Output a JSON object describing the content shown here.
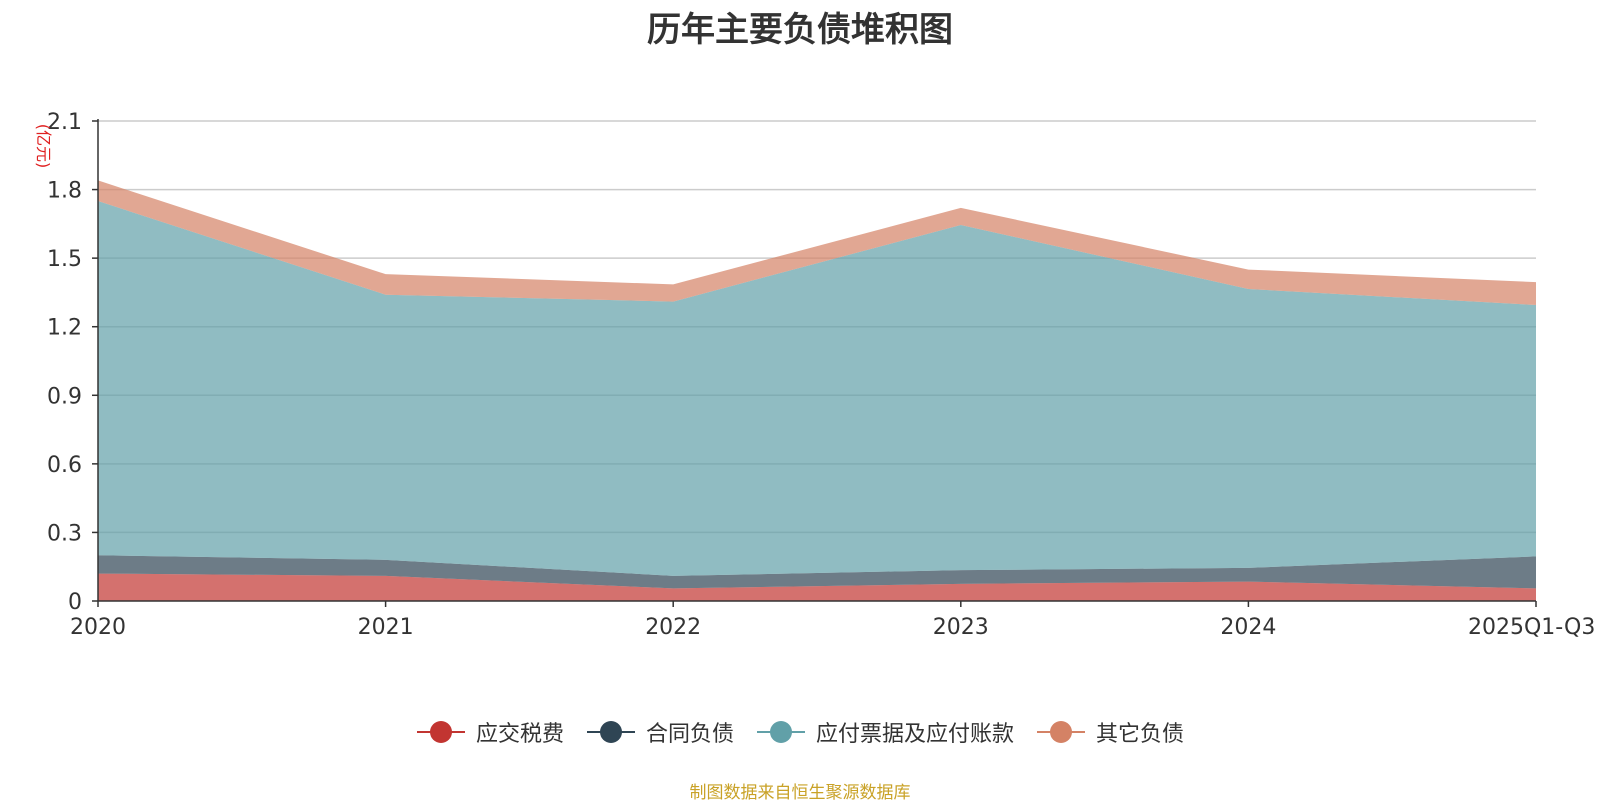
{
  "title": "历年主要负债堆积图",
  "source_note": "制图数据来自恒生聚源数据库",
  "chart_data": {
    "type": "area",
    "stacked": true,
    "title": "历年主要负债堆积图",
    "ylabel": "(亿元)",
    "ylim": [
      0,
      2.1
    ],
    "yticks": [
      "0",
      "0.3",
      "0.6",
      "0.9",
      "1.2",
      "1.5",
      "1.8",
      "2.1"
    ],
    "grid": true,
    "legend_position": "bottom",
    "categories": [
      "2020",
      "2021",
      "2022",
      "2023",
      "2024",
      "2025Q1-Q3"
    ],
    "series": [
      {
        "name": "应交税费",
        "color": "#c23531",
        "values": [
          0.12,
          0.11,
          0.055,
          0.075,
          0.085,
          0.055
        ]
      },
      {
        "name": "合同负债",
        "color": "#2f4554",
        "values": [
          0.08,
          0.07,
          0.055,
          0.06,
          0.06,
          0.14
        ]
      },
      {
        "name": "应付票据及应付账款",
        "color": "#61a0a8",
        "values": [
          1.55,
          1.16,
          1.2,
          1.51,
          1.22,
          1.1
        ]
      },
      {
        "name": "其它负债",
        "color": "#d48265",
        "values": [
          0.09,
          0.09,
          0.075,
          0.075,
          0.085,
          0.1
        ]
      }
    ]
  }
}
